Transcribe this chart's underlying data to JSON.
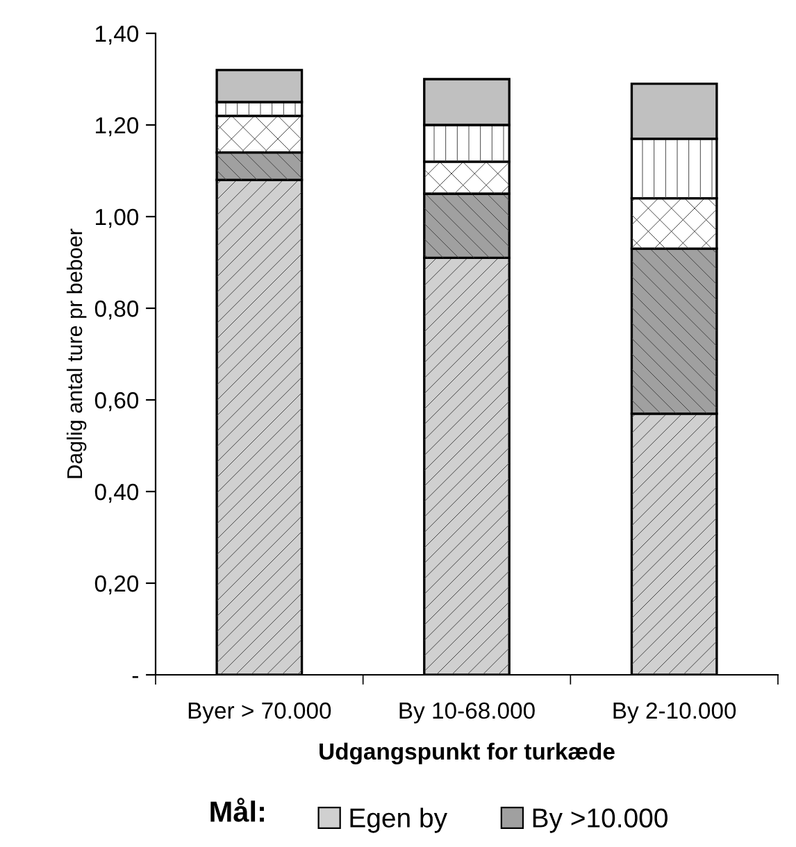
{
  "chart_data": {
    "type": "bar",
    "stacked": true,
    "xlabel": "Udgangspunkt for turkæde",
    "ylabel": "Daglig antal ture pr beboer",
    "legend_title": "Mål:",
    "legend": "bottom",
    "grid": false,
    "categories": [
      "Byer > 70.000",
      "By 10-68.000",
      "By 2-10.000"
    ],
    "ylim": [
      0,
      1.4
    ],
    "yticks": [
      {
        "value": 0,
        "label": "-"
      },
      {
        "value": 0.2,
        "label": "0,20"
      },
      {
        "value": 0.4,
        "label": "0,40"
      },
      {
        "value": 0.6,
        "label": "0,60"
      },
      {
        "value": 0.8,
        "label": "0,80"
      },
      {
        "value": 1.0,
        "label": "1,00"
      },
      {
        "value": 1.2,
        "label": "1,20"
      },
      {
        "value": 1.4,
        "label": "1,40"
      }
    ],
    "series": [
      {
        "name": "Egen by",
        "color": "#d0d0d0",
        "values": [
          1.08,
          0.91,
          0.57
        ]
      },
      {
        "name": "By >10.000",
        "color": "#a0a0a0",
        "values": [
          0.06,
          0.14,
          0.36
        ]
      },
      {
        "color": "#ffffff",
        "values": [
          0.08,
          0.07,
          0.11
        ]
      },
      {
        "color": "#ffffff",
        "values": [
          0.03,
          0.08,
          0.13
        ]
      },
      {
        "color": "#c0c0c0",
        "values": [
          0.07,
          0.1,
          0.12
        ]
      }
    ]
  }
}
